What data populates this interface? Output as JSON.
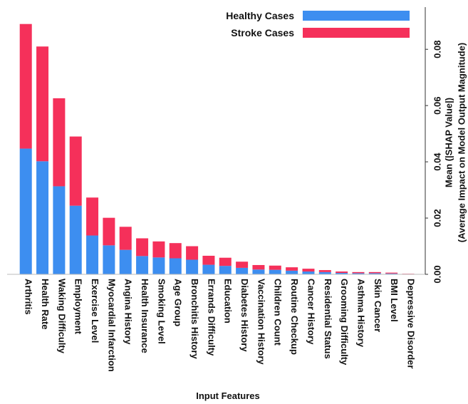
{
  "chart_data": {
    "type": "bar",
    "stacked": true,
    "categories": [
      "Arthritis",
      "Health Rate",
      "Waking Difficulty",
      "Employment",
      "Exercise Level",
      "Myocardial Infarction",
      "Angina History",
      "Health Insurance",
      "Smoking Level",
      "Age Group",
      "Bronchitis History",
      "Errands Difficulty",
      "Education",
      "Diabetes History",
      "Vaccination History",
      "Children Count",
      "Routine Checkup",
      "Cancer History",
      "Residential Status",
      "Grooming Difficulty",
      "Asthma History",
      "Skin Cancer",
      "BMI Level",
      "Depressive Disorder"
    ],
    "series": [
      {
        "name": "Healthy Cases",
        "color": "#3d8ef0",
        "values": [
          0.0447,
          0.0402,
          0.0313,
          0.0244,
          0.0138,
          0.0103,
          0.0087,
          0.0065,
          0.006,
          0.0057,
          0.0052,
          0.0034,
          0.003,
          0.0023,
          0.0017,
          0.0016,
          0.0013,
          0.001,
          0.0008,
          0.0005,
          0.0004,
          0.0004,
          0.0003,
          0.0001
        ]
      },
      {
        "name": "Stroke Cases",
        "color": "#f5305a",
        "values": [
          0.0443,
          0.0408,
          0.0313,
          0.0246,
          0.0135,
          0.0098,
          0.0082,
          0.0063,
          0.0057,
          0.0054,
          0.0048,
          0.0032,
          0.0029,
          0.0022,
          0.0016,
          0.0015,
          0.0012,
          0.001,
          0.0007,
          0.0005,
          0.0004,
          0.0004,
          0.0003,
          0.0001
        ]
      }
    ],
    "xlabel": "Input Features",
    "ylabel": [
      "Mean (|SHAP Value|)",
      "(Average Impact on Model Output Magnitude)"
    ],
    "ylim": [
      0,
      0.095
    ],
    "yticks": [
      "0.00",
      "0.02",
      "0.04",
      "0.06",
      "0.08"
    ],
    "ytick_values": [
      0,
      0.02,
      0.04,
      0.06,
      0.08
    ],
    "y_axis_side": "right",
    "grid": false,
    "legend_position": "top-right"
  }
}
